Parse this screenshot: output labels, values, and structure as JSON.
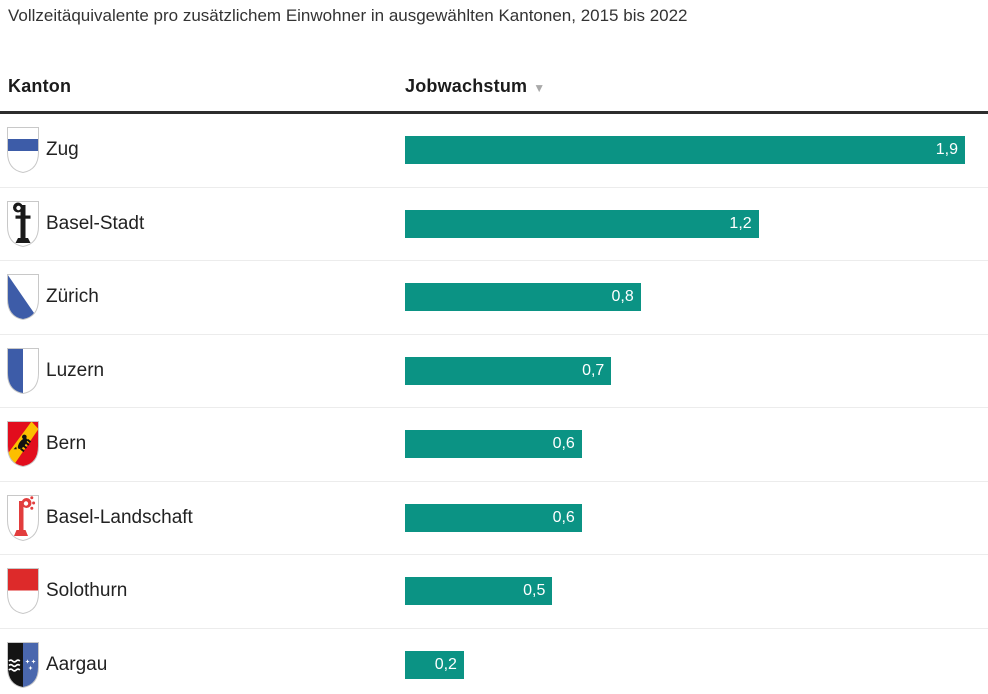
{
  "title": "Vollzeitäquivalente pro zusätzlichem Einwohner in ausgewählten Kantonen, 2015 bis 2022",
  "header": {
    "kanton_label": "Kanton",
    "jobwachstum_label": "Jobwachstum",
    "sort_icon": "▼",
    "sort_direction": "descending"
  },
  "rows": [
    {
      "canton": "Zug",
      "value": 1.9,
      "value_label": "1,9",
      "flag_icon": "flag-zug-icon"
    },
    {
      "canton": "Basel-Stadt",
      "value": 1.2,
      "value_label": "1,2",
      "flag_icon": "flag-basel-stadt-icon"
    },
    {
      "canton": "Zürich",
      "value": 0.8,
      "value_label": "0,8",
      "flag_icon": "flag-zuerich-icon"
    },
    {
      "canton": "Luzern",
      "value": 0.7,
      "value_label": "0,7",
      "flag_icon": "flag-luzern-icon"
    },
    {
      "canton": "Bern",
      "value": 0.6,
      "value_label": "0,6",
      "flag_icon": "flag-bern-icon"
    },
    {
      "canton": "Basel-Landschaft",
      "value": 0.6,
      "value_label": "0,6",
      "flag_icon": "flag-basel-landschaft-icon"
    },
    {
      "canton": "Solothurn",
      "value": 0.5,
      "value_label": "0,5",
      "flag_icon": "flag-solothurn-icon"
    },
    {
      "canton": "Aargau",
      "value": 0.2,
      "value_label": "0,2",
      "flag_icon": "flag-aargau-icon"
    }
  ],
  "chart_data": {
    "type": "bar",
    "orientation": "horizontal",
    "title": "Vollzeitäquivalente pro zusätzlichem Einwohner in ausgewählten Kantonen, 2015 bis 2022",
    "series_label": "Jobwachstum",
    "categories": [
      "Zug",
      "Basel-Stadt",
      "Zürich",
      "Luzern",
      "Bern",
      "Basel-Landschaft",
      "Solothurn",
      "Aargau"
    ],
    "values": [
      1.9,
      1.2,
      0.8,
      0.7,
      0.6,
      0.6,
      0.5,
      0.2
    ],
    "value_labels": [
      "1,9",
      "1,2",
      "0,8",
      "0,7",
      "0,6",
      "0,6",
      "0,5",
      "0,2"
    ],
    "xlim": [
      0,
      1.9
    ],
    "sorted": "descending by Jobwachstum",
    "grid": false,
    "legend": "none",
    "bar_color": "#0b9384",
    "value_label_color": "#ffffff"
  },
  "colors": {
    "bar_teal": "#0b9384",
    "header_rule": "#2d2d2d",
    "row_divider": "#ececec",
    "title_text": "#333333",
    "header_text": "#1c1c1c",
    "canton_text": "#222222",
    "sort_arrow": "#a9a9a9",
    "flag_blue": "#3d5ca8",
    "aargau_blue": "#4a67ad",
    "bern_red": "#e20d1d",
    "bern_yellow": "#fcbe00",
    "solothurn_red": "#dd2a2a",
    "baselland_red": "#e23d3d"
  }
}
